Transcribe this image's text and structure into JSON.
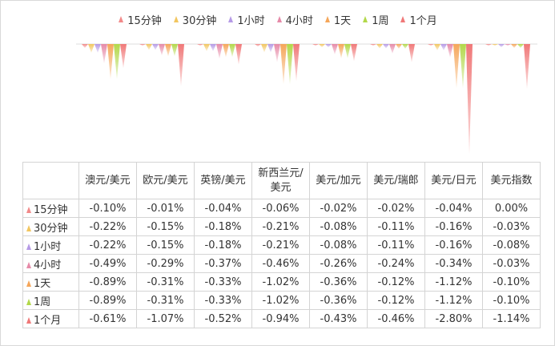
{
  "colors": [
    "#f28a8a",
    "#f2c660",
    "#b59ae6",
    "#e68aa8",
    "#f5a65a",
    "#b2d84a",
    "#f07878"
  ],
  "chart_data": {
    "type": "bar",
    "categories": [
      "澳元/美元",
      "欧元/美元",
      "英镑/美元",
      "新西兰元/\n美元",
      "美元/加元",
      "美元/瑞郎",
      "美元/日元",
      "美元指数"
    ],
    "series": [
      {
        "name": "15分钟",
        "values": [
          "-0.10%",
          "-0.01%",
          "-0.04%",
          "-0.06%",
          "-0.02%",
          "-0.02%",
          "-0.04%",
          "0.00%"
        ]
      },
      {
        "name": "30分钟",
        "values": [
          "-0.22%",
          "-0.15%",
          "-0.18%",
          "-0.21%",
          "-0.08%",
          "-0.11%",
          "-0.16%",
          "-0.03%"
        ]
      },
      {
        "name": "1小时",
        "values": [
          "-0.22%",
          "-0.15%",
          "-0.18%",
          "-0.21%",
          "-0.08%",
          "-0.11%",
          "-0.16%",
          "-0.08%"
        ]
      },
      {
        "name": "4小时",
        "values": [
          "-0.49%",
          "-0.29%",
          "-0.37%",
          "-0.46%",
          "-0.26%",
          "-0.24%",
          "-0.34%",
          "-0.03%"
        ]
      },
      {
        "name": "1天",
        "values": [
          "-0.89%",
          "-0.31%",
          "-0.33%",
          "-1.02%",
          "-0.36%",
          "-0.12%",
          "-1.12%",
          "-0.10%"
        ]
      },
      {
        "name": "1周",
        "values": [
          "-0.89%",
          "-0.31%",
          "-0.33%",
          "-1.02%",
          "-0.36%",
          "-0.12%",
          "-1.12%",
          "-0.10%"
        ]
      },
      {
        "name": "1个月",
        "values": [
          "-0.61%",
          "-1.07%",
          "-0.52%",
          "-0.94%",
          "-0.43%",
          "-0.46%",
          "-2.80%",
          "-1.14%"
        ]
      }
    ],
    "ylim": [
      -2.8,
      0
    ]
  }
}
